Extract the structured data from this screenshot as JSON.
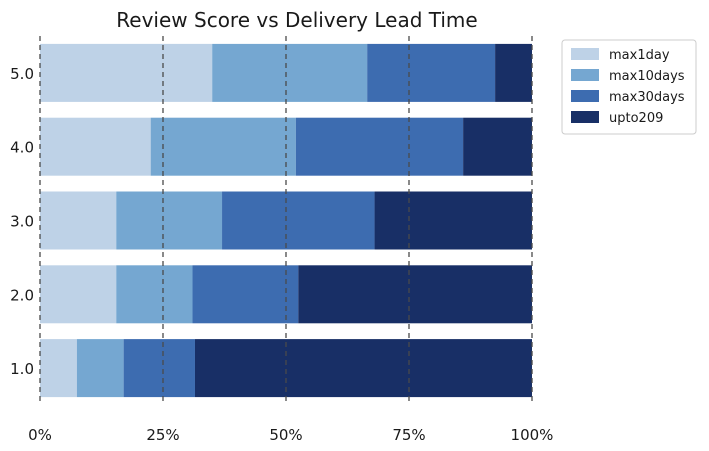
{
  "chart_data": {
    "type": "bar",
    "orientation": "horizontal",
    "stacked": true,
    "title": "Review Score vs Delivery Lead Time",
    "xlabel": "",
    "ylabel": "",
    "categories": [
      "1.0",
      "2.0",
      "3.0",
      "4.0",
      "5.0"
    ],
    "series": [
      {
        "name": "max1day",
        "color": "#bed2e7",
        "values": [
          7.5,
          15.5,
          15.5,
          22.5,
          35.0
        ]
      },
      {
        "name": "max10days",
        "color": "#75a7d1",
        "values": [
          9.5,
          15.5,
          21.5,
          29.5,
          31.5
        ]
      },
      {
        "name": "max30days",
        "color": "#3d6cb0",
        "values": [
          14.5,
          21.5,
          31.0,
          34.0,
          26.0
        ]
      },
      {
        "name": "upto209",
        "color": "#182f66",
        "values": [
          68.5,
          47.5,
          32.0,
          14.0,
          7.5
        ]
      }
    ],
    "xlim": [
      0,
      100
    ],
    "xticks": [
      0,
      25,
      50,
      75,
      100
    ],
    "xtick_labels": [
      "0%",
      "25%",
      "50%",
      "75%",
      "100%"
    ],
    "reference_lines": [
      0,
      25,
      50,
      75,
      100
    ],
    "grid": false,
    "legend_position": "top-right outside"
  }
}
